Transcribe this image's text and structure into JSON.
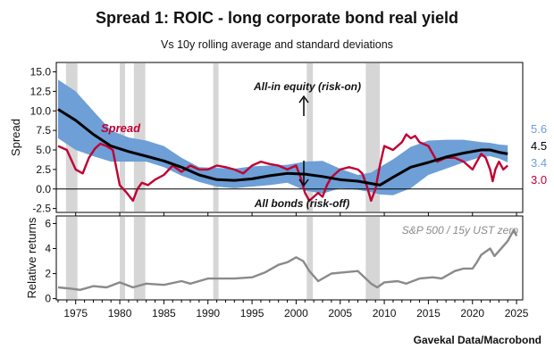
{
  "chart_data": [
    {
      "type": "line",
      "title": "Spread 1: ROIC - long corporate bond real yield",
      "subtitle": "Vs 10y rolling average and standard deviations",
      "ylabel": "Spread",
      "xlim": [
        1972.8,
        2025.7
      ],
      "ylim": [
        -3,
        16.2
      ],
      "yticks": [
        15.0,
        12.5,
        10.0,
        7.5,
        5.0,
        2.5,
        0.0,
        -2.5
      ],
      "xticks": [
        1975,
        1980,
        1985,
        1990,
        1995,
        2000,
        2005,
        2010,
        2015,
        2020,
        2025
      ],
      "recessions": [
        [
          1973.9,
          1975.2
        ],
        [
          1980.0,
          1980.6
        ],
        [
          1981.6,
          1982.9
        ],
        [
          1990.6,
          1991.2
        ],
        [
          2001.2,
          2001.9
        ],
        [
          2007.9,
          2009.5
        ]
      ],
      "series": [
        {
          "name": "Spread",
          "color": "#c00033",
          "x": [
            1973.0,
            1974.0,
            1975.0,
            1975.8,
            1976.5,
            1977.2,
            1977.8,
            1978.5,
            1979.2,
            1980.0,
            1980.8,
            1981.5,
            1982.0,
            1982.5,
            1983.2,
            1984.0,
            1985.0,
            1986.0,
            1987.0,
            1988.0,
            1989.0,
            1990.0,
            1991.0,
            1992.0,
            1993.0,
            1994.0,
            1995.0,
            1996.0,
            1997.0,
            1998.0,
            1999.0,
            2000.0,
            2000.5,
            2001.0,
            2001.5,
            2002.0,
            2002.5,
            2003.0,
            2003.5,
            2004.0,
            2005.0,
            2006.0,
            2007.0,
            2007.5,
            2008.0,
            2008.5,
            2009.0,
            2009.5,
            2010.0,
            2011.0,
            2012.0,
            2012.5,
            2013.0,
            2013.5,
            2014.0,
            2015.0,
            2016.0,
            2017.0,
            2018.0,
            2019.0,
            2020.0,
            2020.5,
            2021.0,
            2021.5,
            2022.0,
            2022.3,
            2022.6,
            2023.0,
            2023.5,
            2024.0
          ],
          "values": [
            5.5,
            5.0,
            2.5,
            2.0,
            4.0,
            5.2,
            5.8,
            5.5,
            5.0,
            0.5,
            -0.5,
            -1.5,
            0.0,
            0.8,
            0.5,
            1.2,
            1.8,
            3.0,
            2.2,
            3.0,
            2.5,
            2.5,
            3.0,
            2.8,
            2.5,
            2.0,
            3.0,
            3.5,
            3.2,
            3.0,
            2.5,
            3.0,
            1.5,
            -0.5,
            -1.5,
            -1.0,
            -0.5,
            -1.0,
            0.5,
            1.5,
            2.5,
            2.8,
            2.5,
            2.0,
            0.5,
            -1.5,
            0.0,
            3.0,
            5.5,
            5.0,
            6.0,
            7.0,
            6.5,
            6.8,
            6.0,
            5.5,
            3.5,
            4.0,
            4.0,
            3.5,
            2.5,
            3.5,
            4.5,
            4.0,
            2.5,
            1.0,
            2.5,
            3.5,
            2.5,
            3.0
          ]
        },
        {
          "name": "",
          "color": "#000000",
          "x": [
            1973.0,
            1975.0,
            1977.0,
            1979.0,
            1981.0,
            1983.0,
            1985.0,
            1987.0,
            1989.0,
            1991.0,
            1993.0,
            1995.0,
            1997.0,
            1999.0,
            2001.0,
            2003.0,
            2005.0,
            2007.0,
            2008.5,
            2009.5,
            2011.0,
            2013.0,
            2015.0,
            2017.0,
            2019.0,
            2021.0,
            2022.0,
            2023.0,
            2024.0
          ],
          "values": [
            10.2,
            8.8,
            7.0,
            5.5,
            4.8,
            4.2,
            3.6,
            2.8,
            1.8,
            1.2,
            1.1,
            1.3,
            1.7,
            2.0,
            1.9,
            1.6,
            1.2,
            1.0,
            0.7,
            0.5,
            1.5,
            2.8,
            3.4,
            4.1,
            4.6,
            5.0,
            5.0,
            4.7,
            4.5
          ]
        },
        {
          "name": "",
          "color": "#6e9fd6",
          "x": [
            1973.0,
            1975.0,
            1977.0,
            1979.0,
            1981.0,
            1983.0,
            1985.0,
            1987.0,
            1989.0,
            1991.0,
            1993.0,
            1995.0,
            1997.0,
            1999.0,
            2001.0,
            2003.0,
            2005.0,
            2007.0,
            2008.5,
            2009.5,
            2011.0,
            2013.0,
            2015.0,
            2017.0,
            2019.0,
            2021.0,
            2022.0,
            2023.0,
            2024.0
          ],
          "upper": [
            14.0,
            12.5,
            10.0,
            7.5,
            6.6,
            6.2,
            5.5,
            4.0,
            2.8,
            2.7,
            2.6,
            2.9,
            3.0,
            3.1,
            3.5,
            3.6,
            2.6,
            1.8,
            2.1,
            2.8,
            3.8,
            5.4,
            6.2,
            6.3,
            6.3,
            6.0,
            5.9,
            5.7,
            5.6
          ],
          "lower": [
            6.5,
            5.0,
            4.2,
            3.5,
            3.5,
            3.5,
            2.8,
            1.7,
            0.9,
            0.3,
            0.1,
            0.3,
            0.5,
            0.8,
            -0.2,
            -0.6,
            0.1,
            -0.1,
            -0.4,
            -0.7,
            -0.8,
            0.1,
            1.8,
            2.6,
            3.4,
            4.1,
            4.2,
            3.9,
            3.4
          ]
        }
      ],
      "end_labels": [
        {
          "text": "5.6",
          "color": "#6e9fd6"
        },
        {
          "text": "4.5",
          "color": "#000000"
        },
        {
          "text": "3.4",
          "color": "#6e9fd6"
        },
        {
          "text": "3.0",
          "color": "#c00033"
        }
      ],
      "annotations": {
        "spread": "Spread",
        "equity": "All-in equity (risk-on)",
        "bonds": "All bonds (risk-off)"
      }
    },
    {
      "type": "line",
      "ylabel": "Relative returns",
      "xlim": [
        1972.8,
        2025.7
      ],
      "ylim": [
        -0.1,
        6.6
      ],
      "yticks": [
        6,
        4,
        2,
        0
      ],
      "xlabel": "",
      "series": [
        {
          "name": "S&P 500 / 15y UST zero",
          "color": "#8a8a8a",
          "x": [
            1973.0,
            1974.5,
            1975.5,
            1977.0,
            1978.5,
            1980.0,
            1981.5,
            1983.0,
            1985.0,
            1987.0,
            1988.0,
            1990.0,
            1991.5,
            1993.0,
            1995.0,
            1996.5,
            1998.0,
            1999.0,
            2000.0,
            2000.8,
            2001.5,
            2002.5,
            2003.0,
            2004.0,
            2005.5,
            2007.0,
            2008.5,
            2009.2,
            2010.0,
            2011.5,
            2012.5,
            2014.0,
            2015.5,
            2016.5,
            2018.0,
            2019.0,
            2020.0,
            2020.5,
            2021.0,
            2022.0,
            2022.5,
            2023.0,
            2024.0,
            2024.7,
            2025.0
          ],
          "values": [
            0.9,
            0.8,
            0.7,
            1.0,
            0.9,
            1.3,
            0.9,
            1.2,
            1.1,
            1.4,
            1.2,
            1.6,
            1.6,
            1.6,
            1.7,
            2.1,
            2.7,
            2.9,
            3.3,
            3.0,
            2.2,
            1.4,
            1.6,
            2.0,
            2.1,
            2.2,
            1.2,
            0.9,
            1.3,
            1.4,
            1.2,
            1.6,
            1.7,
            1.6,
            2.2,
            2.4,
            2.4,
            2.9,
            3.5,
            4.0,
            3.4,
            3.8,
            4.6,
            5.5,
            5.0
          ]
        }
      ]
    }
  ],
  "source": "Gavekal Data/Macrobond"
}
